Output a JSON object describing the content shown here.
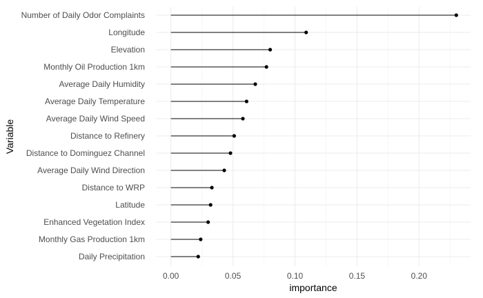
{
  "chart_data": {
    "type": "lollipop",
    "orientation": "horizontal",
    "xlabel": "importance",
    "ylabel": "Variable",
    "xlim": [
      -0.0115,
      0.2415
    ],
    "x_ticks": [
      "0.00",
      "0.05",
      "0.10",
      "0.15",
      "0.20"
    ],
    "x_tick_values": [
      0,
      0.05,
      0.1,
      0.15,
      0.2
    ],
    "grid": true,
    "colors": {
      "mark": "#000000",
      "grid": "#ebebeb",
      "label": "#4d4d4d"
    },
    "categories": [
      "Number of Daily Odor Complaints",
      "Longitude",
      "Elevation",
      "Monthly Oil Production 1km",
      "Average Daily Humidity",
      "Average Daily Temperature",
      "Average Daily Wind Speed",
      "Distance to Refinery",
      "Distance to Dominguez Channel",
      "Average Daily Wind Direction",
      "Distance to WRP",
      "Latitude",
      "Enhanced Vegetation Index",
      "Monthly Gas Production 1km",
      "Daily Precipitation"
    ],
    "values": [
      0.23,
      0.109,
      0.08,
      0.077,
      0.068,
      0.061,
      0.058,
      0.051,
      0.048,
      0.043,
      0.033,
      0.032,
      0.03,
      0.024,
      0.022
    ]
  }
}
